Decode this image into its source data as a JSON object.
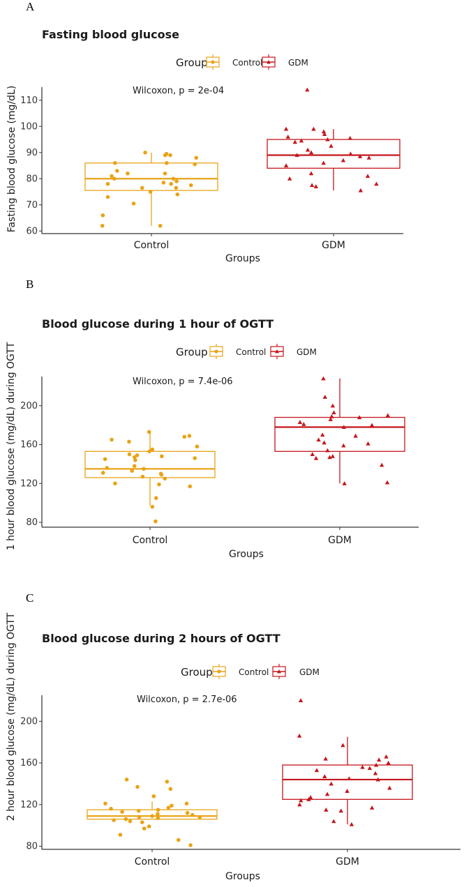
{
  "colors": {
    "Control": "#E8A317",
    "GDM": "#C4161C"
  },
  "chart_data": [
    {
      "type": "boxplot",
      "panel": "A",
      "title": "Fasting blood glucose",
      "legend": {
        "title": "Group",
        "entries": [
          "Control",
          "GDM"
        ],
        "position": "top"
      },
      "stat_label": "Wilcoxon, p = 2e-04",
      "xlabel": "Groups",
      "ylabel": "Fasting blood glucose (mg/dL)",
      "categories": [
        "Control",
        "GDM"
      ],
      "ylim": [
        59,
        115
      ],
      "yticks": [
        60,
        70,
        80,
        90,
        100,
        110
      ],
      "boxes": [
        {
          "q1": 75.5,
          "median": 80,
          "q3": 86,
          "whisker_low": 62,
          "whisker_high": 90
        },
        {
          "q1": 84,
          "median": 89,
          "q3": 95,
          "whisker_low": 75.5,
          "whisker_high": 99
        }
      ],
      "points": [
        [
          90,
          89,
          88,
          89.5,
          89,
          83,
          82,
          86,
          86,
          85.5,
          82,
          81,
          79,
          80,
          80,
          78.5,
          78,
          78,
          77.5,
          76.5,
          76.5,
          75,
          74,
          73,
          70.5,
          66,
          62,
          62
        ],
        [
          114,
          99,
          99,
          98,
          97,
          96,
          95.5,
          95,
          94.5,
          94,
          92.5,
          91,
          90,
          89.5,
          89,
          88.5,
          88,
          87,
          86,
          85,
          82,
          81,
          80,
          78,
          77.5,
          77,
          75.5
        ]
      ]
    },
    {
      "type": "boxplot",
      "panel": "B",
      "title": "Blood glucose during 1 hour of OGTT",
      "legend": {
        "title": "Group",
        "entries": [
          "Control",
          "GDM"
        ],
        "position": "top"
      },
      "stat_label": "Wilcoxon, p = 7.4e-06",
      "xlabel": "Groups",
      "ylabel": "1 hour blood glucose (mg/dL) during OGTT",
      "categories": [
        "Control",
        "GDM"
      ],
      "ylim": [
        75,
        230
      ],
      "yticks": [
        80,
        120,
        160,
        200
      ],
      "boxes": [
        {
          "q1": 126,
          "median": 135,
          "q3": 153,
          "whisker_low": 97,
          "whisker_high": 173
        },
        {
          "q1": 153,
          "median": 178,
          "q3": 188,
          "whisker_low": 120,
          "whisker_high": 228
        }
      ],
      "points": [
        [
          173,
          169,
          168,
          165,
          163,
          158,
          155,
          153,
          150,
          149,
          148,
          147,
          146,
          145,
          144,
          138,
          136,
          135,
          133,
          131,
          130,
          129,
          127,
          125,
          120,
          119,
          117,
          105,
          96,
          81
        ],
        [
          228,
          209,
          200,
          193,
          190,
          189,
          188,
          186,
          183,
          181,
          180,
          178,
          170,
          169,
          165,
          162,
          161,
          159,
          154,
          150,
          148,
          147,
          146,
          139,
          121,
          120
        ]
      ]
    },
    {
      "type": "boxplot",
      "panel": "C",
      "title": "Blood glucose during 2 hours of OGTT",
      "legend": {
        "title": "Group",
        "entries": [
          "Control",
          "GDM"
        ],
        "position": "top"
      },
      "stat_label": "Wilcoxon, p = 2.7e-06",
      "xlabel": "Groups",
      "ylabel": "2 hour blood glucose (mg/dL) during OGTT",
      "categories": [
        "Control",
        "GDM"
      ],
      "ylim": [
        77,
        225
      ],
      "yticks": [
        80,
        120,
        160,
        200
      ],
      "boxes": [
        {
          "q1": 106,
          "median": 109,
          "q3": 115,
          "whisker_low": 106,
          "whisker_high": 123
        },
        {
          "q1": 125,
          "median": 144,
          "q3": 158,
          "whisker_low": 101,
          "whisker_high": 185
        }
      ],
      "points": [
        [
          144,
          142,
          137,
          135,
          128,
          121,
          121,
          119,
          117,
          116,
          115,
          114,
          113,
          112,
          111,
          110,
          109,
          108,
          108,
          107,
          106,
          105,
          104,
          103,
          99,
          97,
          91,
          86,
          81
        ],
        [
          220,
          186,
          177,
          166,
          164,
          163,
          160,
          158,
          156,
          155,
          153,
          150,
          147,
          145,
          144,
          140,
          136,
          133,
          130,
          127,
          125,
          124,
          120,
          117,
          115,
          114,
          104,
          101
        ]
      ]
    }
  ]
}
